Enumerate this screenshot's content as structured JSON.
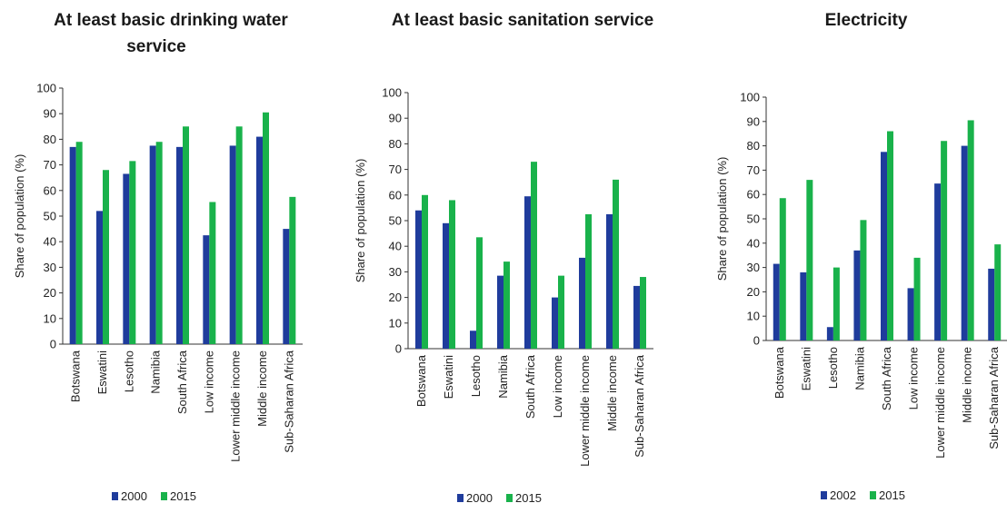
{
  "colors": {
    "series_1": "#1f3c9c",
    "series_2": "#19b24b"
  },
  "chart_data": [
    {
      "type": "bar",
      "title": "At least basic drinking water service",
      "ylabel": "Share of population (%)",
      "ylim": [
        0,
        100
      ],
      "yticks": [
        "0",
        "10",
        "20",
        "30",
        "40",
        "50",
        "60",
        "70",
        "80",
        "90",
        "100"
      ],
      "categories": [
        "Botswana",
        "Eswatini",
        "Lesotho",
        "Namibia",
        "South Africa",
        "Low income",
        "Lower middle income",
        "Middle income",
        "Sub-Saharan Africa"
      ],
      "series": [
        {
          "name": "2000",
          "values": [
            77,
            52,
            66.5,
            77.5,
            77,
            42.5,
            77.5,
            81,
            45
          ]
        },
        {
          "name": "2015",
          "values": [
            79,
            68,
            71.5,
            79,
            85,
            55.5,
            85,
            90.5,
            57.5
          ]
        }
      ],
      "legend": "bottom",
      "grid": false
    },
    {
      "type": "bar",
      "title": "At least basic sanitation service",
      "ylabel": "Share of population (%)",
      "ylim": [
        0,
        100
      ],
      "yticks": [
        "0",
        "10",
        "20",
        "30",
        "40",
        "50",
        "60",
        "70",
        "80",
        "90",
        "100"
      ],
      "categories": [
        "Botswana",
        "Eswatini",
        "Lesotho",
        "Namibia",
        "South Africa",
        "Low income",
        "Lower middle income",
        "Middle income",
        "Sub-Saharan Africa"
      ],
      "series": [
        {
          "name": "2000",
          "values": [
            54,
            49,
            7,
            28.5,
            59.5,
            20,
            35.5,
            52.5,
            24.5
          ]
        },
        {
          "name": "2015",
          "values": [
            60,
            58,
            43.5,
            34,
            73,
            28.5,
            52.5,
            66,
            28
          ]
        }
      ],
      "legend": "bottom",
      "grid": false
    },
    {
      "type": "bar",
      "title": "Electricity",
      "ylabel": "Share of population (%)",
      "ylim": [
        0,
        100
      ],
      "yticks": [
        "0",
        "10",
        "20",
        "30",
        "40",
        "50",
        "60",
        "70",
        "80",
        "90",
        "100"
      ],
      "categories": [
        "Botswana",
        "Eswatini",
        "Lesotho",
        "Namibia",
        "South Africa",
        "Low income",
        "Lower middle income",
        "Middle income",
        "Sub-Saharan Africa"
      ],
      "series": [
        {
          "name": "2002",
          "values": [
            31.5,
            28,
            5.5,
            37,
            77.5,
            21.5,
            64.5,
            80,
            29.5
          ]
        },
        {
          "name": "2015",
          "values": [
            58.5,
            66,
            30,
            49.5,
            86,
            34,
            82,
            90.5,
            39.5
          ]
        }
      ],
      "legend": "bottom",
      "grid": false
    }
  ]
}
